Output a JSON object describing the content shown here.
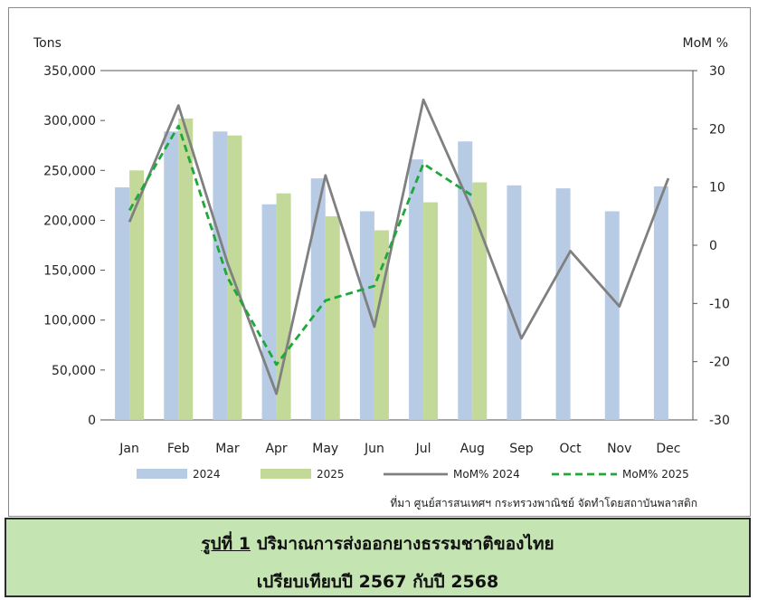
{
  "chart_data": {
    "type": "bar",
    "categories": [
      "Jan",
      "Feb",
      "Mar",
      "Apr",
      "May",
      "Jun",
      "Jul",
      "Aug",
      "Sep",
      "Oct",
      "Nov",
      "Dec"
    ],
    "y_left_label": "Tons",
    "y_right_label": "MoM %",
    "y_left_range": [
      0,
      350000
    ],
    "y_right_range": [
      -30,
      30
    ],
    "y_left_ticks": [
      "0",
      "50,000",
      "100,000",
      "150,000",
      "200,000",
      "250,000",
      "300,000",
      "350,000"
    ],
    "y_right_ticks": [
      "-30",
      "-20",
      "-10",
      "0",
      "10",
      "20",
      "30"
    ],
    "grid": false,
    "legend_position": "bottom",
    "bar_series": [
      {
        "name": "2024",
        "color": "#b7cbe5",
        "values": [
          233000,
          289000,
          289000,
          216000,
          242000,
          209000,
          261000,
          279000,
          235000,
          232000,
          209000,
          234000
        ]
      },
      {
        "name": "2025",
        "color": "#c2d99a",
        "values": [
          250000,
          302000,
          285000,
          227000,
          204000,
          190000,
          218000,
          238000,
          null,
          null,
          null,
          null
        ]
      }
    ],
    "line_series": [
      {
        "name": "MoM% 2024",
        "color": "#808080",
        "style": "solid",
        "axis": "right",
        "values": [
          4,
          24,
          -3,
          -25.5,
          12,
          -14,
          25,
          6,
          -16,
          -1,
          -10.5,
          11.5
        ]
      },
      {
        "name": "MoM% 2025",
        "color": "#1ea83a",
        "style": "dashed",
        "axis": "right",
        "values": [
          6,
          20.5,
          -5.5,
          -20.5,
          -9.5,
          -7,
          14,
          8.5,
          null,
          null,
          null,
          null
        ]
      }
    ]
  },
  "source_note": "ที่มา ศูนย์สารสนเทศฯ กระทรวงพาณิชย์ จัดทำโดยสถาบันพลาสติก",
  "caption": {
    "figure_label": "รูปที่ 1",
    "line1_text": " ปริมาณการส่งออกยางธรรมชาติของไทย",
    "line2": "เปรียบเทียบปี 2567 กับปี 2568"
  }
}
